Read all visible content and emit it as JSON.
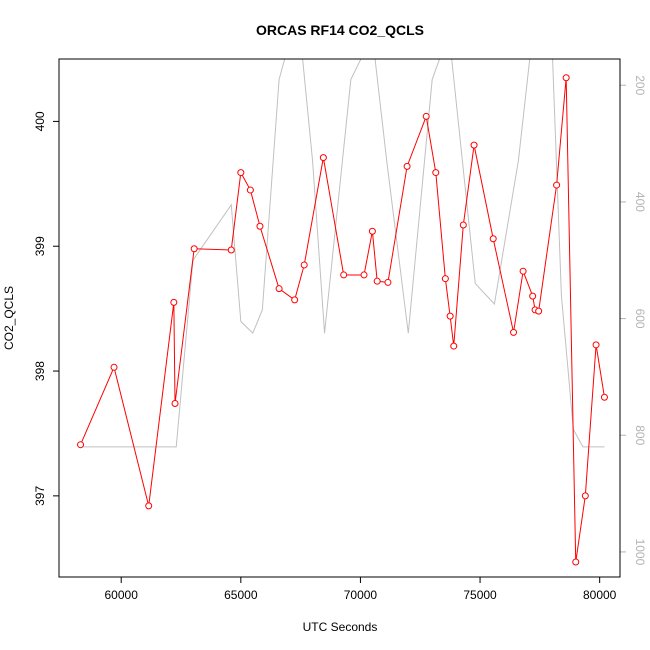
{
  "chart_data": {
    "type": "line",
    "title": "ORCAS RF14 CO2_QCLS",
    "xlabel": "UTC Seconds",
    "ylabel": "CO2_QCLS",
    "ylabel_right": "",
    "xlim": [
      57400,
      80850
    ],
    "ylim": [
      396.35,
      400.5
    ],
    "y2lim": [
      1043,
      155
    ],
    "y2_reversed": true,
    "x_ticks": [
      60000,
      65000,
      70000,
      75000,
      80000
    ],
    "y_ticks": [
      397,
      398,
      399,
      400
    ],
    "y2_ticks": [
      200,
      400,
      600,
      800,
      1000
    ],
    "grid": false,
    "legend": "none",
    "series": [
      {
        "axis": "left",
        "color": "#ff0000",
        "marker": "open-circle",
        "points": [
          [
            58300,
            397.41
          ],
          [
            59700,
            398.03
          ],
          [
            61150,
            396.92
          ],
          [
            62200,
            398.55
          ],
          [
            62250,
            397.74
          ],
          [
            63050,
            398.98
          ],
          [
            64600,
            398.97
          ],
          [
            65000,
            399.59
          ],
          [
            65400,
            399.45
          ],
          [
            65800,
            399.16
          ],
          [
            66600,
            398.66
          ],
          [
            67250,
            398.57
          ],
          [
            67650,
            398.85
          ],
          [
            68450,
            399.71
          ],
          [
            69300,
            398.77
          ],
          [
            70150,
            398.77
          ],
          [
            70500,
            399.12
          ],
          [
            70700,
            398.72
          ],
          [
            71150,
            398.71
          ],
          [
            71950,
            399.64
          ],
          [
            72750,
            400.04
          ],
          [
            73150,
            399.59
          ],
          [
            73550,
            398.74
          ],
          [
            73750,
            398.44
          ],
          [
            73900,
            398.2
          ],
          [
            74300,
            399.17
          ],
          [
            74750,
            399.81
          ],
          [
            75550,
            399.06
          ],
          [
            76400,
            398.31
          ],
          [
            76800,
            398.8
          ],
          [
            77200,
            398.6
          ],
          [
            77300,
            398.49
          ],
          [
            77450,
            398.48
          ],
          [
            78200,
            399.49
          ],
          [
            78600,
            400.35
          ],
          [
            79000,
            396.47
          ],
          [
            79400,
            397.0
          ],
          [
            79850,
            398.21
          ],
          [
            80200,
            397.79
          ]
        ]
      },
      {
        "axis": "right",
        "color": "#c0c0c0",
        "marker": "none",
        "points": [
          [
            58300,
            820
          ],
          [
            62300,
            820
          ],
          [
            63000,
            500
          ],
          [
            64600,
            405
          ],
          [
            65000,
            605
          ],
          [
            65500,
            625
          ],
          [
            65900,
            585
          ],
          [
            66600,
            190
          ],
          [
            67000,
            130
          ],
          [
            67500,
            120
          ],
          [
            68000,
            330
          ],
          [
            68500,
            625
          ],
          [
            69600,
            190
          ],
          [
            70500,
            115
          ],
          [
            71100,
            330
          ],
          [
            72000,
            625
          ],
          [
            73000,
            190
          ],
          [
            73700,
            110
          ],
          [
            74800,
            540
          ],
          [
            75600,
            575
          ],
          [
            76600,
            330
          ],
          [
            77200,
            110
          ],
          [
            78000,
            120
          ],
          [
            78400,
            560
          ],
          [
            78900,
            790
          ],
          [
            79300,
            820
          ],
          [
            80200,
            820
          ]
        ]
      }
    ]
  }
}
